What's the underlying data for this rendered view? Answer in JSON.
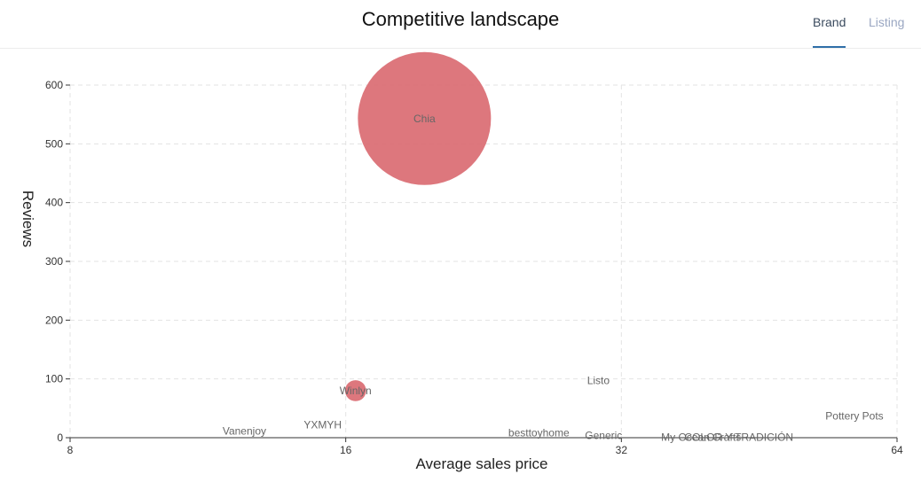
{
  "header": {
    "title": "Competitive landscape",
    "tabs": [
      {
        "label": "Brand",
        "active": true
      },
      {
        "label": "Listing",
        "active": false
      }
    ]
  },
  "colors": {
    "bubble": "#d9686f",
    "active_tab": "#3a4a5e",
    "inactive_tab": "#9aa7c2",
    "tab_underline": "#2f6fa8",
    "grid": "#e3e3e3"
  },
  "chart_data": {
    "type": "scatter",
    "xlabel": "Average sales price",
    "ylabel": "Reviews",
    "x_scale": "log2",
    "xlim": [
      8,
      64
    ],
    "ylim": [
      0,
      600
    ],
    "x_ticks": [
      "8",
      "16",
      "32",
      "64"
    ],
    "y_ticks": [
      "0",
      "100",
      "200",
      "300",
      "400",
      "500",
      "600"
    ],
    "grid": true,
    "series": [
      {
        "points": [
          {
            "label": "Chia",
            "x": 19.5,
            "y": 543,
            "size": 80
          },
          {
            "label": "Winlyn",
            "x": 16.4,
            "y": 80,
            "size": 2
          },
          {
            "label": "Listo",
            "x": 30.2,
            "y": 97,
            "size": 0
          },
          {
            "label": "Vanenjoy",
            "x": 12.4,
            "y": 11,
            "size": 0
          },
          {
            "label": "YXMYH",
            "x": 15.1,
            "y": 22,
            "size": 0
          },
          {
            "label": "besttoyhome",
            "x": 26.0,
            "y": 8,
            "size": 0
          },
          {
            "label": "Generic",
            "x": 30.6,
            "y": 4,
            "size": 0
          },
          {
            "label": "My Ocean Crafts",
            "x": 39.1,
            "y": 1,
            "size": 0
          },
          {
            "label": "COLOR Y TRADICIÓN",
            "x": 43.0,
            "y": 1,
            "size": 0
          },
          {
            "label": "Pottery Pots",
            "x": 57.5,
            "y": 37,
            "size": 0
          }
        ]
      }
    ]
  }
}
